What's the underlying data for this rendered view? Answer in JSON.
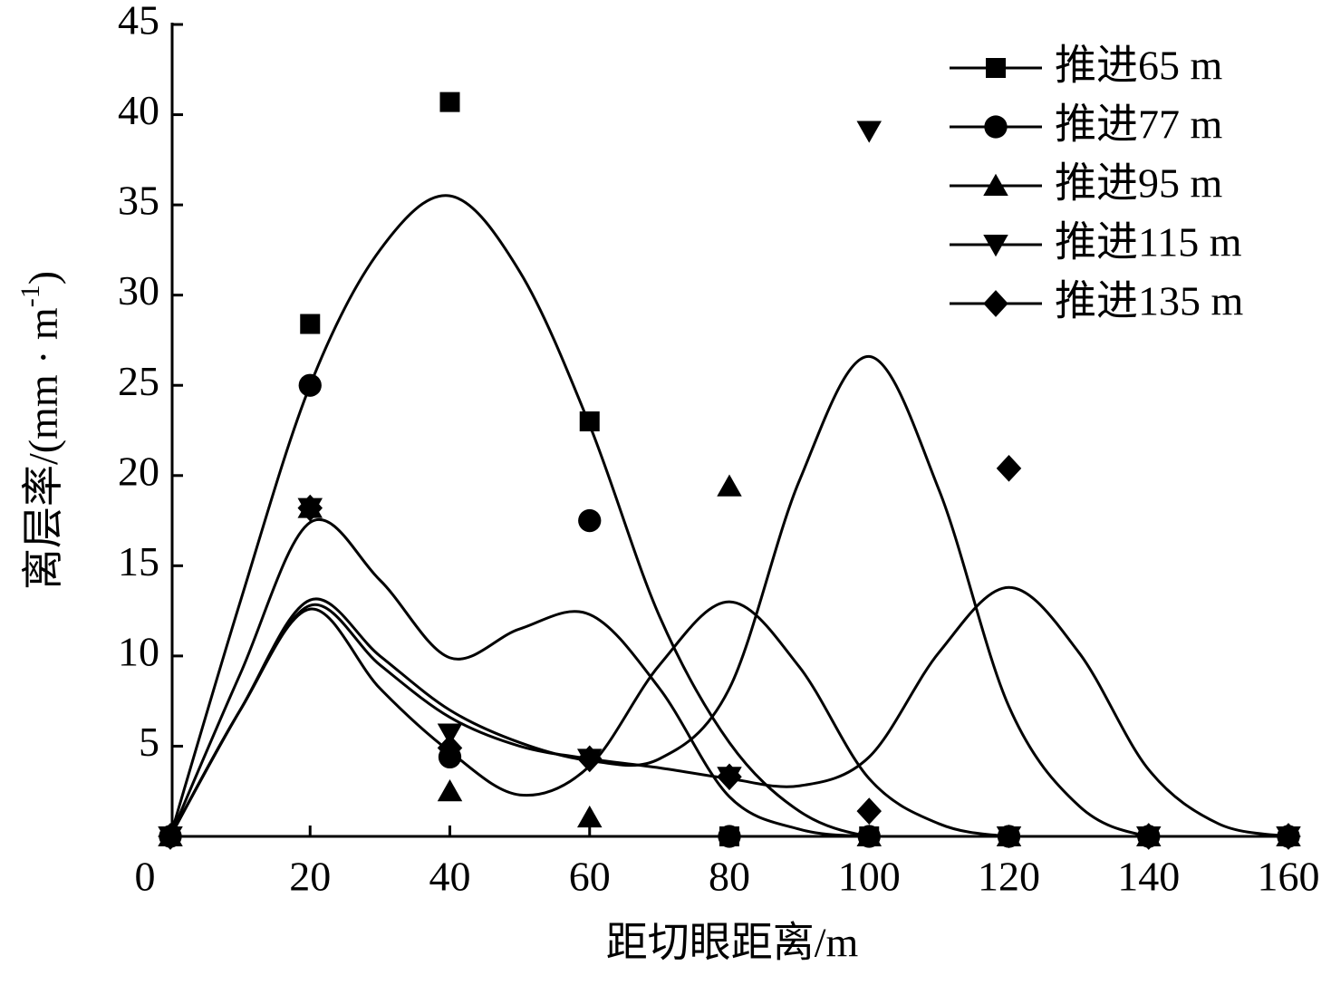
{
  "chart_data": {
    "type": "scatter",
    "x_label": "距切眼距离/m",
    "y_label": {
      "text": "离层率/(mm · m",
      "sup": "-1",
      "end": ")"
    },
    "x": [
      0,
      20,
      40,
      60,
      80,
      100,
      120,
      140,
      160
    ],
    "fit_x": [
      0,
      10,
      20,
      30,
      40,
      50,
      60,
      70,
      80,
      90,
      100,
      110,
      120,
      130,
      140,
      150,
      160
    ],
    "series": [
      {
        "name": "推进65 m",
        "color": "#000000",
        "marker": "square",
        "values": [
          0,
          28.4,
          40.7,
          23.0,
          0,
          0,
          0,
          0,
          0
        ],
        "fit": [
          0,
          13,
          25,
          32.5,
          35.5,
          31.3,
          22.8,
          12.2,
          5.2,
          1.4,
          0,
          0,
          0,
          0,
          0,
          0,
          0
        ]
      },
      {
        "name": "推进77 m",
        "color": "#000000",
        "marker": "circle",
        "values": [
          0,
          25.0,
          4.4,
          17.5,
          0,
          0,
          0,
          0,
          0
        ],
        "fit": [
          0,
          9,
          17.4,
          14.2,
          9.9,
          11.5,
          12.3,
          8.2,
          2.2,
          0.4,
          0,
          0,
          0,
          0,
          0,
          0,
          0
        ]
      },
      {
        "name": "推进95 m",
        "color": "#000000",
        "marker": "triangle",
        "values": [
          0,
          18.2,
          2.5,
          1.05,
          19.4,
          0,
          0,
          0,
          0
        ],
        "fit": [
          0,
          7,
          12.6,
          8.2,
          4.7,
          2.3,
          3.9,
          9.5,
          13,
          9.4,
          3.2,
          0.7,
          0,
          0,
          0,
          0,
          0
        ]
      },
      {
        "name": "推进115 m",
        "color": "#000000",
        "marker": "triangle-down",
        "values": [
          0,
          18.2,
          5.7,
          4.3,
          3.3,
          39.1,
          0,
          0,
          0
        ],
        "fit": [
          0,
          7,
          13.1,
          10,
          7,
          5.2,
          4.2,
          4.3,
          8.2,
          19.7,
          26.6,
          19.2,
          7.2,
          1.7,
          0,
          0,
          0
        ]
      },
      {
        "name": "推进135 m",
        "color": "#000000",
        "marker": "diamond",
        "values": [
          0,
          18.2,
          4.9,
          4.3,
          3.3,
          1.4,
          20.4,
          0,
          0
        ],
        "fit": [
          0,
          7,
          12.8,
          9.5,
          6.6,
          5,
          4.3,
          3.8,
          3.2,
          2.8,
          4.4,
          10.2,
          13.8,
          10.2,
          3.7,
          0.7,
          0
        ]
      }
    ],
    "xlim": [
      0,
      160
    ],
    "xticks": [
      0,
      20,
      40,
      60,
      80,
      100,
      120,
      140,
      160
    ],
    "ylim": [
      0,
      45
    ],
    "yticks": [
      5,
      10,
      15,
      20,
      25,
      30,
      35,
      40,
      45
    ],
    "legend": "top-right"
  }
}
